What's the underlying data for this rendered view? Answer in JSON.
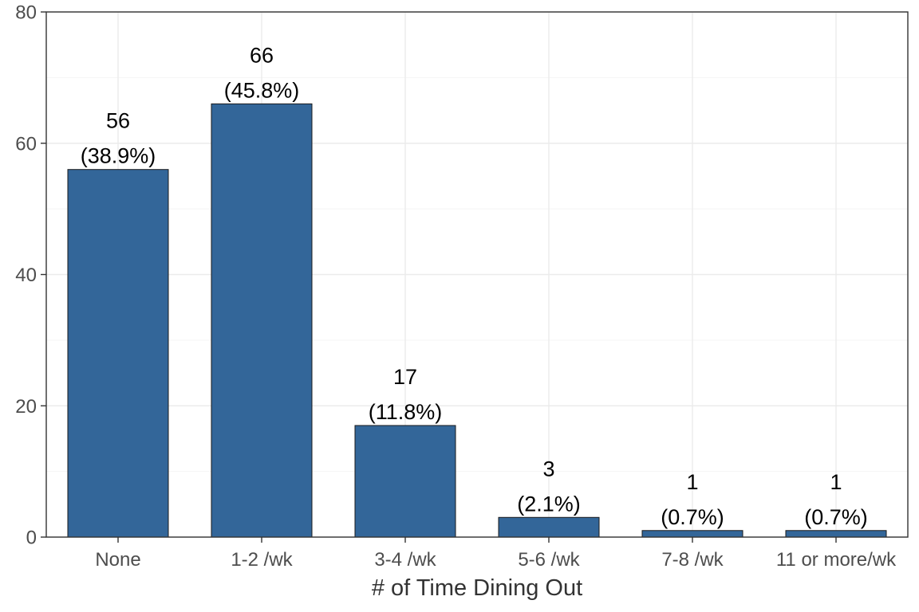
{
  "chart_data": {
    "type": "bar",
    "title": "",
    "xlabel": "# of Time Dining Out",
    "ylabel": "",
    "categories": [
      "None",
      "1-2 /wk",
      "3-4 /wk",
      "5-6 /wk",
      "7-8 /wk",
      "11 or more/wk"
    ],
    "values": [
      56,
      66,
      17,
      3,
      1,
      1
    ],
    "count_labels": [
      "56",
      "66",
      "17",
      "3",
      "1",
      "1"
    ],
    "percent_labels": [
      "(38.9%)",
      "(45.8%)",
      "(11.8%)",
      "(2.1%)",
      "(0.7%)",
      "(0.7%)"
    ],
    "ylim": [
      0,
      80
    ],
    "yticks": [
      0,
      20,
      40,
      60,
      80
    ],
    "ytick_labels": [
      "0",
      "20",
      "40",
      "60",
      "80"
    ],
    "grid": true,
    "legend": "none"
  },
  "colors": {
    "bar_fill": "#336699",
    "bar_stroke": "#1a1a1a",
    "grid_major": "#ebebeb",
    "grid_minor": "#f5f5f5",
    "panel_border": "#333333"
  }
}
